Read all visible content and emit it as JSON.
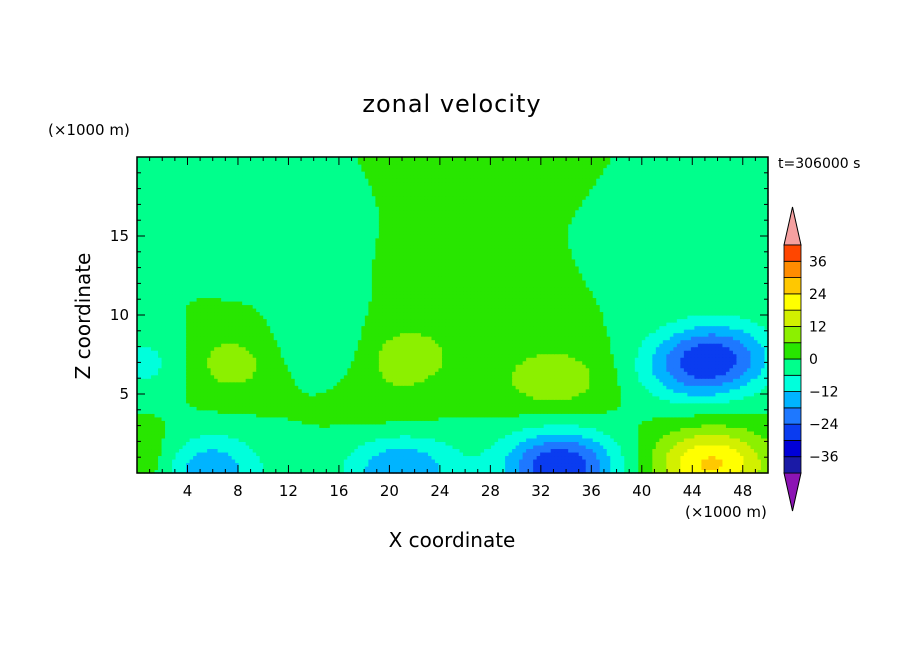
{
  "chart_data": {
    "type": "heatmap",
    "title": "zonal velocity",
    "xlabel": "X coordinate",
    "ylabel": "Z coordinate",
    "x_unit": "(×1000 m)",
    "y_unit": "(×1000 m)",
    "time_label": "t=306000 s",
    "xlim": [
      0,
      50
    ],
    "ylim": [
      0,
      20
    ],
    "x_ticks": [
      4,
      8,
      12,
      16,
      20,
      24,
      28,
      32,
      36,
      40,
      44,
      48
    ],
    "x_tick_labels": [
      "4",
      "8",
      "12",
      "16",
      "20",
      "24",
      "28",
      "32",
      "36",
      "40",
      "44",
      "48"
    ],
    "y_ticks": [
      5,
      10,
      15
    ],
    "y_tick_labels": [
      "5",
      "10",
      "15"
    ],
    "colorbar": {
      "levels": [
        -42,
        -36,
        -30,
        -24,
        -18,
        -12,
        -6,
        0,
        6,
        12,
        18,
        24,
        30,
        36,
        42
      ],
      "labeled_ticks": [
        -36,
        -24,
        -12,
        0,
        12,
        24,
        36
      ],
      "tick_labels": [
        "−36",
        "−24",
        "−12",
        "0",
        "12",
        "24",
        "36"
      ],
      "colors": [
        "#6a00a8",
        "#1a1aa6",
        "#0000d8",
        "#0a3cf0",
        "#1e78ff",
        "#00b4ff",
        "#00ffdc",
        "#00ff8c",
        "#28e600",
        "#8cf000",
        "#d2f000",
        "#ffff00",
        "#ffc800",
        "#ff8c00",
        "#ff4600",
        "#f01e1e"
      ],
      "over_color": "#f5a0a0",
      "under_color": "#8c14b4",
      "extend": "both"
    },
    "features": [
      {
        "x": 46,
        "z": 7.5,
        "u": -20
      },
      {
        "x": 44,
        "z": 6.5,
        "u": -13
      },
      {
        "x": 7,
        "z": 7,
        "u": 10
      },
      {
        "x": 21,
        "z": 7.5,
        "u": 10
      },
      {
        "x": 33,
        "z": 6,
        "u": 10
      },
      {
        "x": 28,
        "z": 13,
        "u": 5
      },
      {
        "x": 20,
        "z": 4,
        "u": 3
      },
      {
        "x": 15,
        "z": 8,
        "u": -7
      },
      {
        "x": 30,
        "z": 17,
        "u": 2
      },
      {
        "x": 1,
        "z": 7,
        "u": -9
      },
      {
        "x": 5,
        "z": 0.3,
        "u": -20
      },
      {
        "x": 21,
        "z": 0.3,
        "u": -18
      },
      {
        "x": 33.5,
        "z": 0.5,
        "u": -30
      },
      {
        "x": 45.5,
        "z": 0.6,
        "u": 25
      },
      {
        "x": 0.5,
        "z": 0.6,
        "u": 12
      },
      {
        "x": 40,
        "z": 15,
        "u": -4
      },
      {
        "x": 10,
        "z": 14,
        "u": -3
      }
    ]
  }
}
